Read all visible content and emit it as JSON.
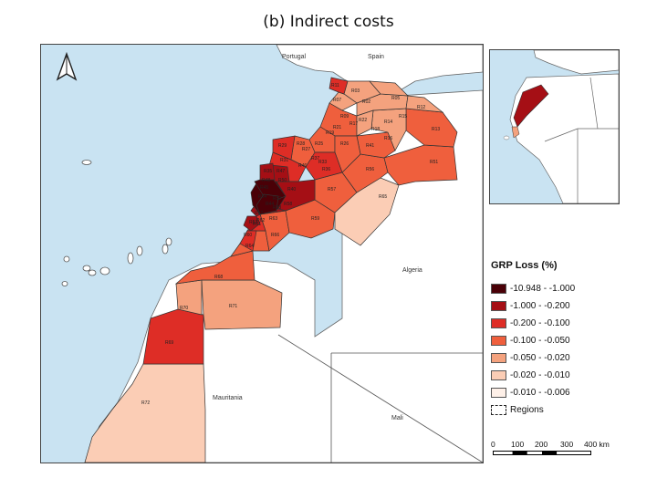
{
  "title": "(b) Indirect costs",
  "map_labels": {
    "portugal": "Portugal",
    "spain": "Spain",
    "algeria": "Algeria",
    "mauritania": "Mauritania",
    "mali": "Mali"
  },
  "region_labels": [
    "R02",
    "R03",
    "R05",
    "R07",
    "R09",
    "R11",
    "R12",
    "R13",
    "R14",
    "R15",
    "R16",
    "R17",
    "R18",
    "R19",
    "R21",
    "R22",
    "R25",
    "R26",
    "R27",
    "R28",
    "R29",
    "R31",
    "R33",
    "R35",
    "R36",
    "R37",
    "R38",
    "R40",
    "R41",
    "R44",
    "R45",
    "R46",
    "R47",
    "R48",
    "R50",
    "R51",
    "R52",
    "R53",
    "R54",
    "R56",
    "R57",
    "R58",
    "R59",
    "R60",
    "R61",
    "R62",
    "R63",
    "R64",
    "R65",
    "R66",
    "R67",
    "R68",
    "R69",
    "R70",
    "R71",
    "R72"
  ],
  "legend": {
    "title": "GRP Loss (%)",
    "items": [
      {
        "label": "-10.948 - -1.000",
        "color": "#4a0007"
      },
      {
        "label": "-1.000 - -0.200",
        "color": "#a50f15"
      },
      {
        "label": "-0.200 - -0.100",
        "color": "#de2d26"
      },
      {
        "label": "-0.100 - -0.050",
        "color": "#ef5f3d"
      },
      {
        "label": "-0.050 - -0.020",
        "color": "#f4a27e"
      },
      {
        "label": "-0.020 - -0.010",
        "color": "#fbcdb5"
      },
      {
        "label": "-0.010 - -0.006",
        "color": "#fef0e8"
      }
    ],
    "regions_label": "Regions"
  },
  "scale_bar": {
    "ticks": [
      "0",
      "100",
      "200",
      "300",
      "400 km"
    ]
  },
  "colors": {
    "sea": "#c9e3f2",
    "land": "#ffffff",
    "highlight": "#a50f15"
  }
}
